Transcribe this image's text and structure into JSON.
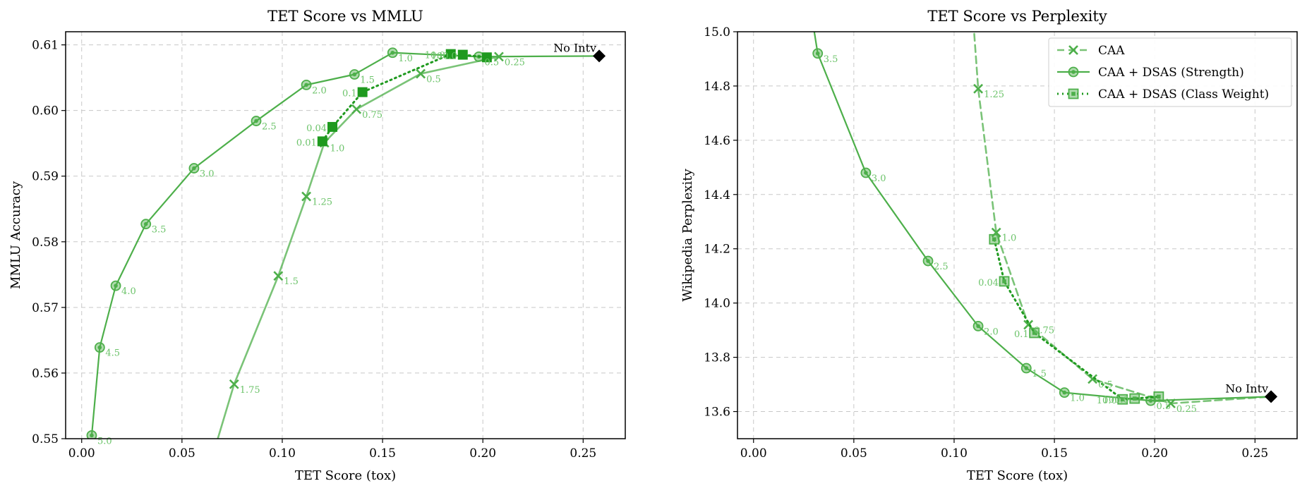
{
  "colors": {
    "green": "#4daf4a",
    "dark_green": "#1f9a1f",
    "label_green": "#6cc36a",
    "baseline": "#000000"
  },
  "chart_data": [
    {
      "id": "mmlu",
      "type": "line",
      "title": "TET Score vs MMLU",
      "xlabel": "TET Score (tox)",
      "ylabel": "MMLU Accuracy",
      "xlim": [
        -0.008,
        0.271
      ],
      "ylim": [
        0.55,
        0.612
      ],
      "xticks": [
        0.0,
        0.05,
        0.1,
        0.15,
        0.2,
        0.25
      ],
      "xtick_labels": [
        "0.00",
        "0.05",
        "0.10",
        "0.15",
        "0.20",
        "0.25"
      ],
      "yticks": [
        0.55,
        0.56,
        0.57,
        0.58,
        0.59,
        0.6,
        0.61
      ],
      "ytick_labels": [
        "0.55",
        "0.56",
        "0.57",
        "0.58",
        "0.59",
        "0.60",
        "0.61"
      ],
      "grid": true,
      "legend": "none",
      "series": [
        {
          "key": "caa",
          "style": "solid-light",
          "marker": "x",
          "points": [
            {
              "x": 0.06,
              "y": 0.542,
              "label": ""
            },
            {
              "x": 0.076,
              "y": 0.5583,
              "label": "1.75"
            },
            {
              "x": 0.098,
              "y": 0.5748,
              "label": "1.5"
            },
            {
              "x": 0.112,
              "y": 0.5869,
              "label": "1.25"
            },
            {
              "x": 0.121,
              "y": 0.5951,
              "label": "1.0"
            },
            {
              "x": 0.137,
              "y": 0.6002,
              "label": "0.75"
            },
            {
              "x": 0.169,
              "y": 0.6056,
              "label": "0.5"
            },
            {
              "x": 0.208,
              "y": 0.6082,
              "label": "0.25"
            }
          ]
        },
        {
          "key": "strength",
          "style": "solid",
          "marker": "circle",
          "points": [
            {
              "x": 0.005,
              "y": 0.5505,
              "label": "5.0"
            },
            {
              "x": 0.009,
              "y": 0.5639,
              "label": "4.5"
            },
            {
              "x": 0.017,
              "y": 0.5733,
              "label": "4.0"
            },
            {
              "x": 0.032,
              "y": 0.5827,
              "label": "3.5"
            },
            {
              "x": 0.056,
              "y": 0.5912,
              "label": "3.0"
            },
            {
              "x": 0.087,
              "y": 0.5984,
              "label": "2.5"
            },
            {
              "x": 0.112,
              "y": 0.6039,
              "label": "2.0"
            },
            {
              "x": 0.136,
              "y": 0.6055,
              "label": "1.5"
            },
            {
              "x": 0.155,
              "y": 0.6088,
              "label": "1.0"
            },
            {
              "x": 0.198,
              "y": 0.6082,
              "label": "0.5"
            },
            {
              "x": 0.258,
              "y": 0.6083,
              "label": ""
            }
          ]
        },
        {
          "key": "class_weight",
          "style": "dotted",
          "marker": "square",
          "points": [
            {
              "x": 0.12,
              "y": 0.5953,
              "label": "0.01"
            },
            {
              "x": 0.125,
              "y": 0.5975,
              "label": "0.04"
            },
            {
              "x": 0.14,
              "y": 0.6028,
              "label": "0.1"
            },
            {
              "x": 0.184,
              "y": 0.6086,
              "label": "10.0"
            },
            {
              "x": 0.19,
              "y": 0.6085,
              "label": "100.0"
            },
            {
              "x": 0.202,
              "y": 0.6081,
              "label": ""
            }
          ]
        }
      ],
      "baseline": {
        "x": 0.258,
        "y": 0.6083,
        "label": "No Intv"
      }
    },
    {
      "id": "perplexity",
      "type": "line",
      "title": "TET Score vs Perplexity",
      "xlabel": "TET Score (tox)",
      "ylabel": "Wikipedia Perplexity",
      "xlim": [
        -0.008,
        0.271
      ],
      "ylim": [
        13.5,
        15.0
      ],
      "xticks": [
        0.0,
        0.05,
        0.1,
        0.15,
        0.2,
        0.25
      ],
      "xtick_labels": [
        "0.00",
        "0.05",
        "0.10",
        "0.15",
        "0.20",
        "0.25"
      ],
      "yticks": [
        13.6,
        13.8,
        14.0,
        14.2,
        14.4,
        14.6,
        14.8,
        15.0
      ],
      "ytick_labels": [
        "13.6",
        "13.8",
        "14.0",
        "14.2",
        "14.4",
        "14.6",
        "14.8",
        "15.0"
      ],
      "grid": true,
      "legend": "top-right",
      "series": [
        {
          "key": "caa",
          "style": "dashed",
          "marker": "x",
          "points": [
            {
              "x": 0.108,
              "y": 15.2,
              "label": ""
            },
            {
              "x": 0.112,
              "y": 14.79,
              "label": "1.25"
            },
            {
              "x": 0.121,
              "y": 14.26,
              "label": "1.0"
            },
            {
              "x": 0.137,
              "y": 13.92,
              "label": "0.75"
            },
            {
              "x": 0.169,
              "y": 13.72,
              "label": "0.5"
            },
            {
              "x": 0.208,
              "y": 13.63,
              "label": "0.25"
            },
            {
              "x": 0.258,
              "y": 13.655,
              "label": ""
            }
          ]
        },
        {
          "key": "strength",
          "style": "solid",
          "marker": "circle",
          "points": [
            {
              "x": 0.026,
              "y": 15.2,
              "label": ""
            },
            {
              "x": 0.032,
              "y": 14.92,
              "label": "3.5"
            },
            {
              "x": 0.056,
              "y": 14.48,
              "label": "3.0"
            },
            {
              "x": 0.087,
              "y": 14.155,
              "label": "2.5"
            },
            {
              "x": 0.112,
              "y": 13.915,
              "label": "2.0"
            },
            {
              "x": 0.136,
              "y": 13.76,
              "label": "1.5"
            },
            {
              "x": 0.155,
              "y": 13.67,
              "label": "1.0"
            },
            {
              "x": 0.198,
              "y": 13.64,
              "label": "0.5"
            },
            {
              "x": 0.258,
              "y": 13.655,
              "label": ""
            }
          ]
        },
        {
          "key": "class_weight",
          "style": "dotted",
          "marker": "square",
          "points": [
            {
              "x": 0.12,
              "y": 14.235,
              "label": ""
            },
            {
              "x": 0.125,
              "y": 14.08,
              "label": "0.04"
            },
            {
              "x": 0.14,
              "y": 13.89,
              "label": "0.1"
            },
            {
              "x": 0.184,
              "y": 13.645,
              "label": "10.0"
            },
            {
              "x": 0.19,
              "y": 13.648,
              "label": "100.0"
            },
            {
              "x": 0.202,
              "y": 13.655,
              "label": ""
            }
          ]
        }
      ],
      "baseline": {
        "x": 0.258,
        "y": 13.655,
        "label": "No Intv"
      },
      "legend_entries": [
        {
          "key": "caa",
          "label": "CAA",
          "style": "dashed",
          "marker": "x"
        },
        {
          "key": "strength",
          "label": "CAA + DSAS (Strength)",
          "style": "solid",
          "marker": "circle"
        },
        {
          "key": "class_weight",
          "label": "CAA + DSAS (Class Weight)",
          "style": "dotted",
          "marker": "square"
        }
      ]
    }
  ]
}
